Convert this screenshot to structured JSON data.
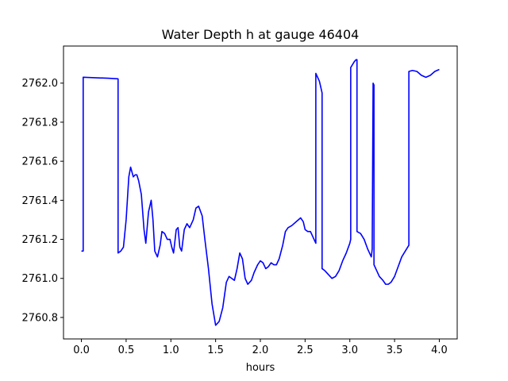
{
  "chart_data": {
    "type": "line",
    "title": "Water Depth h at gauge 46404",
    "xlabel": "hours",
    "ylabel": "",
    "xlim": [
      -0.2,
      4.2
    ],
    "ylim": [
      2760.69,
      2762.19
    ],
    "xticks": [
      0.0,
      0.5,
      1.0,
      1.5,
      2.0,
      2.5,
      3.0,
      3.5,
      4.0
    ],
    "xtick_labels": [
      "0.0",
      "0.5",
      "1.0",
      "1.5",
      "2.0",
      "2.5",
      "3.0",
      "3.5",
      "4.0"
    ],
    "yticks": [
      2760.8,
      2761.0,
      2761.2,
      2761.4,
      2761.6,
      2761.8,
      2762.0
    ],
    "ytick_labels": [
      "2760.8",
      "2761.0",
      "2761.2",
      "2761.4",
      "2761.6",
      "2761.8",
      "2762.0"
    ],
    "grid": false,
    "series": [
      {
        "name": "",
        "color": "#0000ff",
        "x": [
          0.0,
          0.02,
          0.02,
          0.3,
          0.41,
          0.41,
          0.44,
          0.47,
          0.5,
          0.53,
          0.55,
          0.58,
          0.6,
          0.62,
          0.64,
          0.67,
          0.7,
          0.72,
          0.75,
          0.78,
          0.8,
          0.82,
          0.85,
          0.88,
          0.9,
          0.93,
          0.96,
          0.99,
          1.01,
          1.03,
          1.06,
          1.08,
          1.1,
          1.12,
          1.15,
          1.18,
          1.21,
          1.25,
          1.28,
          1.31,
          1.35,
          1.38,
          1.42,
          1.46,
          1.5,
          1.54,
          1.58,
          1.62,
          1.65,
          1.68,
          1.71,
          1.74,
          1.77,
          1.8,
          1.83,
          1.86,
          1.9,
          1.93,
          1.97,
          2.0,
          2.03,
          2.06,
          2.09,
          2.12,
          2.15,
          2.18,
          2.21,
          2.25,
          2.28,
          2.31,
          2.35,
          2.4,
          2.45,
          2.48,
          2.5,
          2.53,
          2.56,
          2.6,
          2.62,
          2.62,
          2.66,
          2.69,
          2.69,
          2.72,
          2.76,
          2.8,
          2.84,
          2.88,
          2.92,
          2.96,
          3.0,
          3.01,
          3.01,
          3.05,
          3.07,
          3.08,
          3.08,
          3.12,
          3.16,
          3.2,
          3.24,
          3.25,
          3.26,
          3.26,
          3.27,
          3.27,
          3.3,
          3.33,
          3.37,
          3.4,
          3.43,
          3.46,
          3.5,
          3.54,
          3.58,
          3.62,
          3.66,
          3.66,
          3.7,
          3.75,
          3.8,
          3.85,
          3.9,
          3.95,
          4.0
        ],
        "y": [
          2761.14,
          2761.14,
          2762.03,
          2762.025,
          2762.022,
          2761.13,
          2761.14,
          2761.16,
          2761.3,
          2761.52,
          2761.57,
          2761.52,
          2761.53,
          2761.53,
          2761.5,
          2761.43,
          2761.25,
          2761.18,
          2761.34,
          2761.4,
          2761.3,
          2761.14,
          2761.11,
          2761.17,
          2761.24,
          2761.23,
          2761.2,
          2761.2,
          2761.16,
          2761.13,
          2761.25,
          2761.26,
          2761.16,
          2761.14,
          2761.25,
          2761.28,
          2761.26,
          2761.3,
          2761.36,
          2761.37,
          2761.32,
          2761.2,
          2761.05,
          2760.87,
          2760.76,
          2760.78,
          2760.85,
          2760.98,
          2761.01,
          2761.0,
          2760.99,
          2761.05,
          2761.13,
          2761.1,
          2761.0,
          2760.97,
          2760.99,
          2761.03,
          2761.07,
          2761.09,
          2761.08,
          2761.05,
          2761.06,
          2761.08,
          2761.07,
          2761.07,
          2761.1,
          2761.17,
          2761.24,
          2761.26,
          2761.27,
          2761.29,
          2761.31,
          2761.29,
          2761.25,
          2761.24,
          2761.24,
          2761.2,
          2761.18,
          2762.05,
          2762.01,
          2761.95,
          2761.05,
          2761.04,
          2761.02,
          2761.0,
          2761.01,
          2761.04,
          2761.09,
          2761.13,
          2761.18,
          2761.2,
          2762.08,
          2762.11,
          2762.12,
          2762.12,
          2761.24,
          2761.23,
          2761.2,
          2761.15,
          2761.11,
          2761.15,
          2762.0,
          2762.0,
          2761.99,
          2761.07,
          2761.04,
          2761.01,
          2760.99,
          2760.97,
          2760.97,
          2760.98,
          2761.01,
          2761.06,
          2761.11,
          2761.14,
          2761.17,
          2762.06,
          2762.065,
          2762.06,
          2762.04,
          2762.03,
          2762.04,
          2762.06,
          2762.07
        ]
      }
    ]
  }
}
